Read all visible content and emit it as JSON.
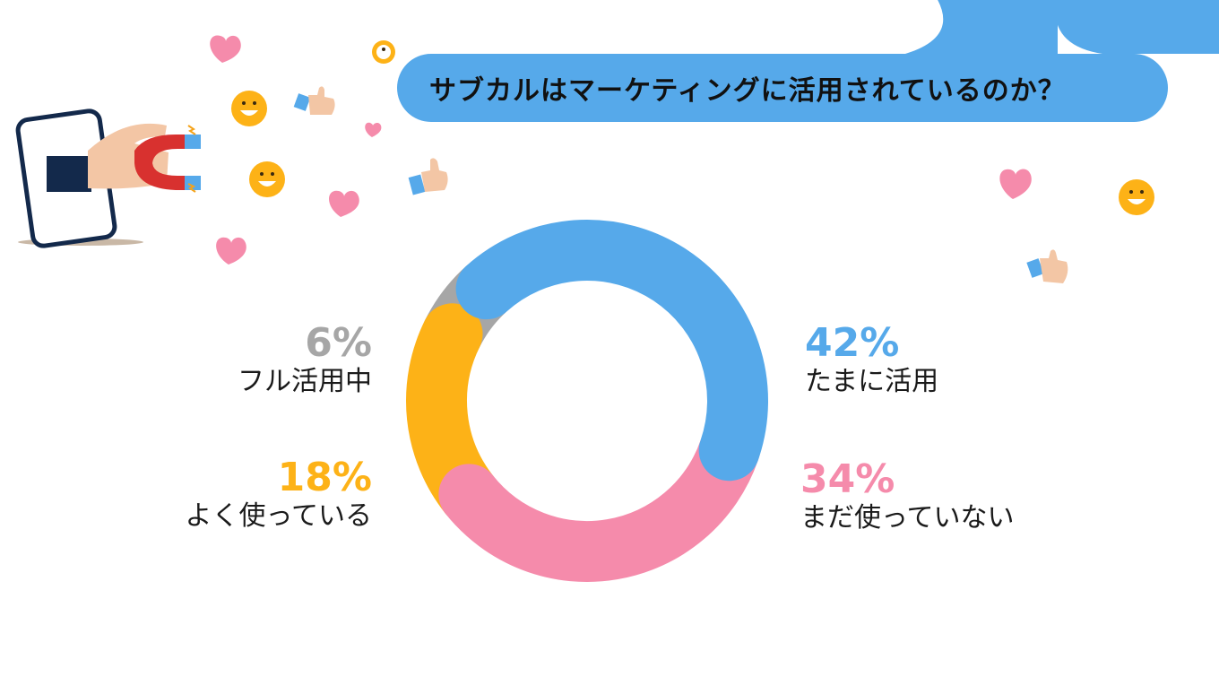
{
  "title": "サブカルはマーケティングに活用されているのか？",
  "chart_data": {
    "type": "pie",
    "variant": "donut",
    "title": "サブカルはマーケティングに活用されているのか？",
    "categories": [
      "たまに活用",
      "まだ使っていない",
      "よく使っている",
      "フル活用中"
    ],
    "values": [
      42,
      34,
      18,
      6
    ],
    "unit": "%",
    "colors": [
      "#56a9ea",
      "#f58bab",
      "#fdb217",
      "#a6a6a6"
    ],
    "value_labels": [
      "42%",
      "34%",
      "18%",
      "6%"
    ]
  },
  "decorations": {
    "icons": [
      "smartphone-magnet-icon",
      "heart-icon",
      "smiley-icon",
      "thumbs-up-icon"
    ],
    "colors": {
      "heart": "#f58bab",
      "smiley": "#fdb217",
      "pill": "#56a9ea"
    }
  }
}
